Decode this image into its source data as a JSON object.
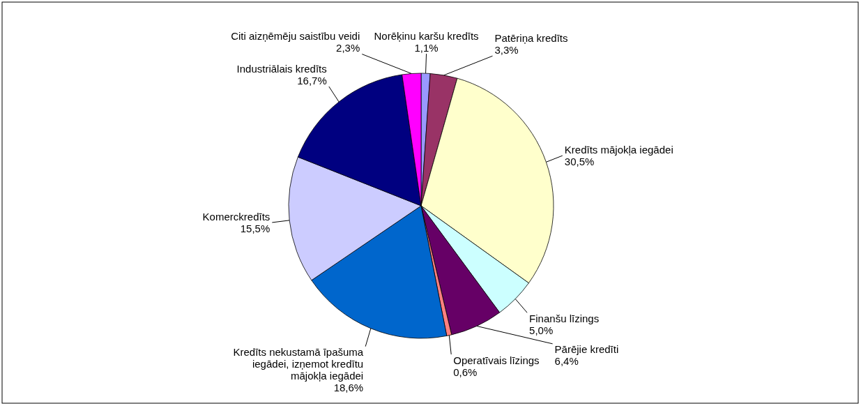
{
  "chart_data": {
    "type": "pie",
    "categories": [
      "Norēķinu karšu kredīts",
      "Patēriņa kredīts",
      "Kredīts mājokļa iegādei",
      "Finanšu līzings",
      "Pārējie kredīti",
      "Operatīvais līzings",
      "Kredīts nekustamā īpašuma iegādei, izņemot kredītu mājokļa iegādei",
      "Komerckredīts",
      "Industriālais kredīts",
      "Citi aizņēmēju saistību veidi"
    ],
    "values": [
      1.1,
      3.3,
      30.5,
      5.0,
      6.4,
      0.6,
      18.6,
      15.5,
      16.7,
      2.3
    ],
    "colors": [
      "#9999ff",
      "#993366",
      "#ffffcc",
      "#ccffff",
      "#660066",
      "#ff8080",
      "#0066cc",
      "#ccccff",
      "#000080",
      "#ff00ff"
    ],
    "value_labels": [
      "1,1%",
      "3,3%",
      "30,5%",
      "5,0%",
      "6,4%",
      "0,6%",
      "18,6%",
      "15,5%",
      "16,7%",
      "2,3%"
    ]
  }
}
